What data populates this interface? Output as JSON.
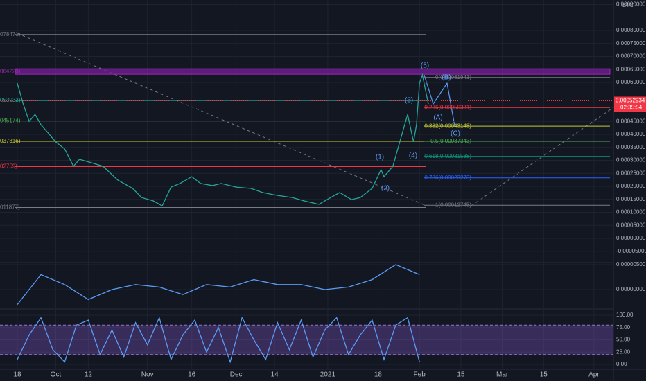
{
  "chart_data": [
    {
      "type": "line",
      "color": "#26a69a",
      "x": [
        0,
        2,
        4,
        6,
        8,
        10,
        13,
        16,
        19,
        21,
        25,
        29,
        34,
        39,
        42,
        46,
        49,
        52,
        55,
        59,
        62,
        66,
        69,
        74,
        79,
        83,
        88,
        93,
        97,
        102,
        106,
        109,
        113,
        116,
        120,
        123,
        124,
        127,
        129,
        132,
        134,
        135,
        136,
        137,
        139
      ],
      "values": [
        0.000597,
        0.000517,
        0.00045,
        0.000477,
        0.000437,
        0.000411,
        0.000371,
        0.000344,
        0.000277,
        0.000304,
        0.000291,
        0.000277,
        0.000224,
        0.000192,
        0.000157,
        0.000144,
        0.000125,
        0.000197,
        0.000211,
        0.000237,
        0.000211,
        0.000203,
        0.000211,
        0.000197,
        0.000192,
        0.000176,
        0.000165,
        0.000157,
        0.000144,
        0.000131,
        0.000157,
        0.000176,
        0.000149,
        0.000157,
        0.000192,
        0.000264,
        0.000237,
        0.000277,
        0.000357,
        0.000477,
        0.000371,
        0.000437,
        0.000597,
        0.000629,
        0.000517
      ],
      "xlim": [
        -5.86,
        201.6
      ],
      "xticks": [
        {
          "value": 0,
          "label": "18"
        },
        {
          "value": 13,
          "label": "Oct"
        },
        {
          "value": 24,
          "label": "12"
        },
        {
          "value": 44,
          "label": "Nov"
        },
        {
          "value": 59,
          "label": "16"
        },
        {
          "value": 74,
          "label": "Dec"
        },
        {
          "value": 87,
          "label": "14"
        },
        {
          "value": 105,
          "label": "2021"
        },
        {
          "value": 122,
          "label": "18"
        },
        {
          "value": 136,
          "label": "Feb"
        },
        {
          "value": 150,
          "label": "15"
        },
        {
          "value": 164,
          "label": "Mar"
        },
        {
          "value": 178,
          "label": "15"
        },
        {
          "value": 195,
          "label": "Apr"
        }
      ],
      "ylim": [
        -9.07e-05,
        0.0009173
      ],
      "yticks": [
        {
          "value": 0.0009,
          "label": "0.00090000"
        },
        {
          "value": 0.0008,
          "label": "0.00080000"
        },
        {
          "value": 0.00075,
          "label": "0.00075000"
        },
        {
          "value": 0.0007,
          "label": "0.00070000"
        },
        {
          "value": 0.00065,
          "label": "0.00065000"
        },
        {
          "value": 0.0006,
          "label": "0.00060000"
        },
        {
          "value": 0.00045,
          "label": "0.00045000"
        },
        {
          "value": 0.0004,
          "label": "0.00040000"
        },
        {
          "value": 0.00035,
          "label": "0.00035000"
        },
        {
          "value": 0.0003,
          "label": "0.00030000"
        },
        {
          "value": 0.00025,
          "label": "0.00025000"
        },
        {
          "value": 0.0002,
          "label": "0.00020000"
        },
        {
          "value": 0.00015,
          "label": "0.00015000"
        },
        {
          "value": 0.0001,
          "label": "0.00010000"
        },
        {
          "value": 5e-05,
          "label": "0.00005000"
        },
        {
          "value": 0,
          "label": "0.00000000"
        },
        {
          "value": -5e-05,
          "label": "-0.00005000"
        }
      ],
      "grid": true,
      "currency": "BTC",
      "price_label": {
        "value": 0.00052934,
        "label": "0.00052934"
      },
      "countdown": "02:35:54",
      "fib_levels": [
        {
          "value": 0.00061941,
          "label": "0(0.00061941)",
          "color": "#787b86"
        },
        {
          "value": 0.00050331,
          "label": "0.236(0.00050331)",
          "color": "#f23645"
        },
        {
          "value": 0.00043148,
          "label": "0.382(0.00043148)",
          "color": "#c0ca33"
        },
        {
          "value": 0.00037343,
          "label": "0.5(0.00037343)",
          "color": "#4caf50"
        },
        {
          "value": 0.00031538,
          "label": "0.618(0.00031538)",
          "color": "#089981"
        },
        {
          "value": 0.00023273,
          "label": "0.786(0.00023273)",
          "color": "#2962ff"
        },
        {
          "value": 0.00012745,
          "label": "1(0.00012745)",
          "color": "#787b86"
        }
      ],
      "left_levels": [
        {
          "value": 0.00078471,
          "label": "078471)",
          "color": "#787b86"
        },
        {
          "value": 0.0006422,
          "label": "064220)",
          "color": "#9c27b0"
        },
        {
          "value": 0.00053032,
          "label": "053032)",
          "color": "#26a69a"
        },
        {
          "value": 0.00045174,
          "label": "045174)",
          "color": "#4caf50"
        },
        {
          "value": 0.00037316,
          "label": "037316)",
          "color": "#c9c930"
        },
        {
          "value": 0.0002759,
          "label": "02759)",
          "color": "#f23645"
        },
        {
          "value": 0.00011877,
          "label": "011877)",
          "color": "#787b86"
        }
      ],
      "annotations": [
        "(1)",
        "(2)",
        "(3)",
        "(4)",
        "(5)",
        "(A)",
        "(B)",
        "(C)"
      ]
    },
    {
      "type": "line",
      "color": "#5b9cf6",
      "x": [
        0,
        8,
        16,
        24,
        32,
        40,
        48,
        56,
        64,
        72,
        80,
        88,
        96,
        104,
        112,
        120,
        128,
        136
      ],
      "values": [
        -3e-06,
        3e-06,
        1e-06,
        -2e-06,
        0,
        1e-06,
        5e-07,
        -1e-06,
        1e-06,
        5e-07,
        2e-06,
        1e-06,
        1e-06,
        0,
        5e-07,
        2e-06,
        5e-06,
        3e-06
      ],
      "xlim": [
        -5.86,
        201.6
      ],
      "ylim": [
        -3.75e-06,
        5.28e-06
      ],
      "yticks": [
        {
          "value": 5e-06,
          "label": "0.00000500"
        },
        {
          "value": 0,
          "label": "0.00000000"
        }
      ]
    },
    {
      "type": "line",
      "color": "#5b9cf6",
      "x": [
        0,
        4,
        8,
        12,
        16,
        20,
        24,
        28,
        32,
        36,
        40,
        44,
        48,
        52,
        56,
        60,
        64,
        68,
        72,
        76,
        80,
        84,
        88,
        92,
        96,
        100,
        104,
        108,
        112,
        116,
        120,
        124,
        128,
        132,
        136
      ],
      "values": [
        10,
        60,
        95,
        30,
        5,
        80,
        90,
        20,
        70,
        15,
        85,
        40,
        95,
        10,
        60,
        90,
        25,
        75,
        5,
        95,
        50,
        10,
        85,
        30,
        90,
        15,
        70,
        95,
        20,
        60,
        90,
        10,
        80,
        95,
        5
      ],
      "xlim": [
        -5.86,
        201.6
      ],
      "ylim": [
        -8.5,
        111.3
      ],
      "band": [
        20,
        80
      ],
      "yticks": [
        {
          "value": 100,
          "label": "100.00"
        },
        {
          "value": 75,
          "label": "75.00"
        },
        {
          "value": 50,
          "label": "50.00"
        },
        {
          "value": 25,
          "label": "25.00"
        },
        {
          "value": 0,
          "label": "0.00"
        }
      ]
    }
  ]
}
